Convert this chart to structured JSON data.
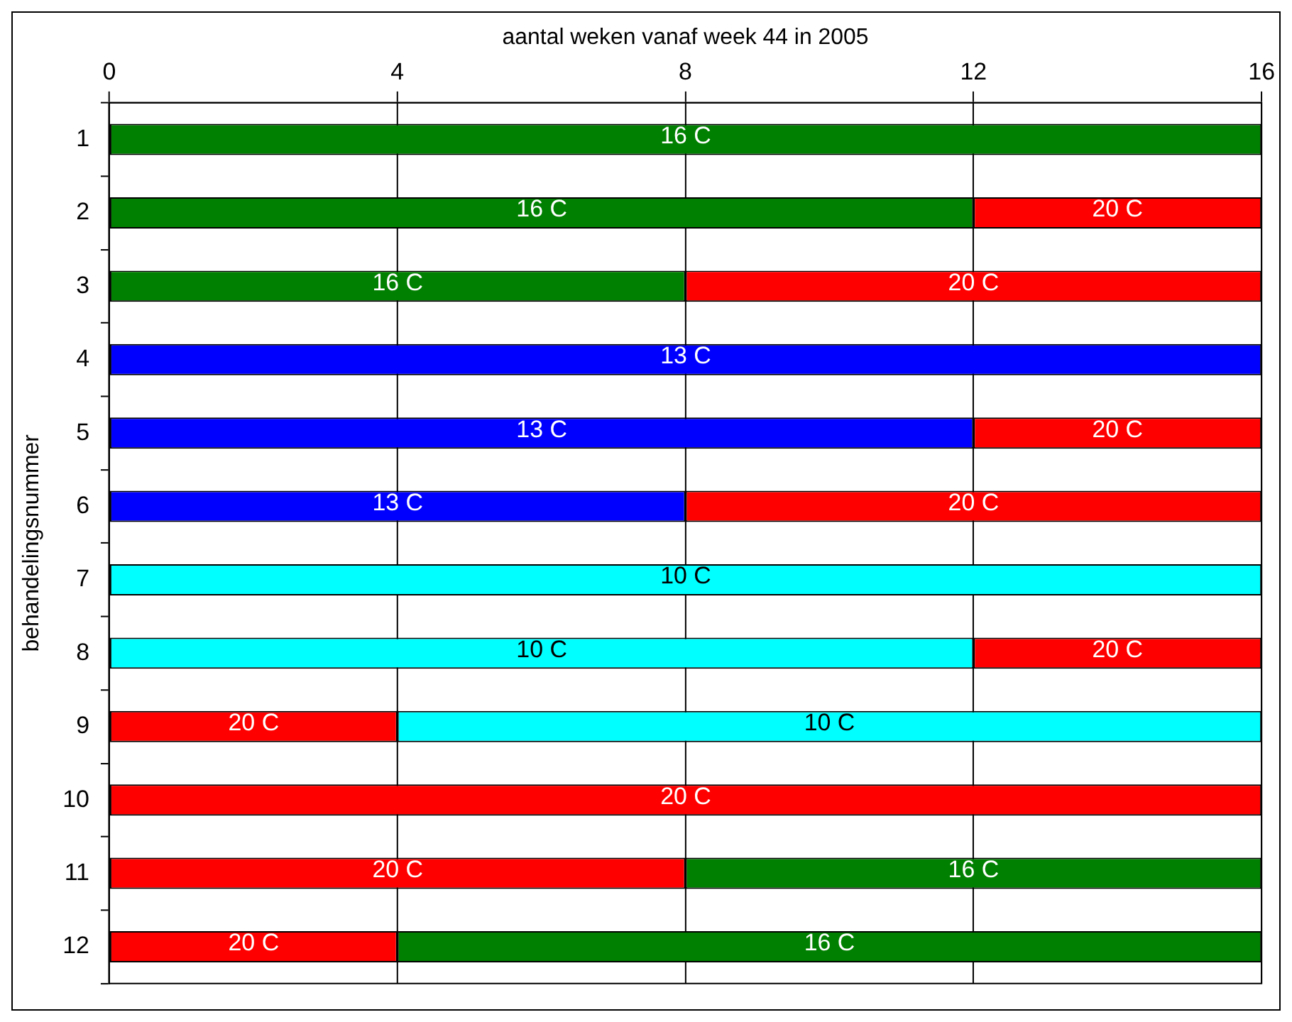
{
  "chart_data": {
    "type": "bar",
    "orientation": "horizontal",
    "xlabel": "aantal weken vanaf week 44 in 2005",
    "ylabel": "behandelingsnummer",
    "categories": [
      "1",
      "2",
      "3",
      "4",
      "5",
      "6",
      "7",
      "8",
      "9",
      "10",
      "11",
      "12"
    ],
    "xlim": [
      0,
      16
    ],
    "xticks": [
      0,
      4,
      8,
      12,
      16
    ],
    "grid": "x",
    "legend": false,
    "series": [
      {
        "name": "16 C",
        "color": "#008000",
        "values": [
          16,
          12,
          8,
          null,
          null,
          null,
          null,
          null,
          null,
          null,
          8,
          12
        ],
        "base": [
          0,
          0,
          0,
          null,
          null,
          null,
          null,
          null,
          null,
          null,
          8,
          4
        ]
      },
      {
        "name": "13 C",
        "color": "#0000ff",
        "values": [
          null,
          null,
          null,
          16,
          12,
          8,
          null,
          null,
          null,
          null,
          null,
          null
        ],
        "base": [
          null,
          null,
          null,
          0,
          0,
          0,
          null,
          null,
          null,
          null,
          null,
          null
        ]
      },
      {
        "name": "10 C",
        "color": "#00ffff",
        "values": [
          null,
          null,
          null,
          null,
          null,
          null,
          16,
          12,
          12,
          null,
          null,
          null
        ],
        "base": [
          null,
          null,
          null,
          null,
          null,
          null,
          0,
          0,
          4,
          null,
          null,
          null
        ]
      },
      {
        "name": "20 C",
        "color": "#ff0000",
        "values": [
          null,
          4,
          8,
          null,
          4,
          8,
          null,
          4,
          4,
          16,
          8,
          4
        ],
        "base": [
          null,
          12,
          8,
          null,
          12,
          8,
          null,
          12,
          0,
          0,
          0,
          0
        ]
      }
    ]
  }
}
